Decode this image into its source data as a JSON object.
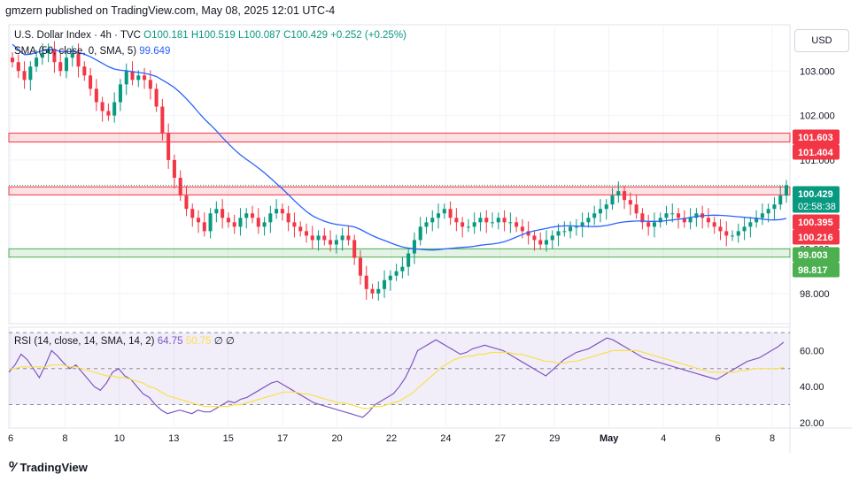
{
  "header": {
    "published": "gmzern published on TradingView.com, May 08, 2025 12:01 UTC-4"
  },
  "legend": {
    "symbol": "U.S. Dollar Index · 4h · TVC",
    "open": "O100.181",
    "high": "H100.519",
    "low": "L100.087",
    "close": "C100.429",
    "change": "+0.252 (+0.25%)",
    "sma_label": "SMA (50, close, 0, SMA, 5)",
    "sma_value": "99.649",
    "rsi_label": "RSI (14, close, 14, SMA, 14, 2)",
    "rsi_value": "64.75",
    "rsi_sma_value": "50.75",
    "rsi_tail": "∅ ∅"
  },
  "currency_button": "USD",
  "footer": {
    "brand": "TradingView"
  },
  "colors": {
    "up": "#089981",
    "down": "#f23645",
    "sma": "#2962ff",
    "rsi": "#7e57c2",
    "rsi_sma": "#f9e04b",
    "resistance_zone": "#f23645",
    "support_zone": "#4caf50"
  },
  "chart_data": [
    {
      "type": "candlestick",
      "title": "U.S. Dollar Index · 4h · TVC",
      "x_tick_labels": [
        "6",
        "8",
        "10",
        "13",
        "15",
        "17",
        "20",
        "22",
        "24",
        "27",
        "29",
        "May",
        "4",
        "6",
        "8"
      ],
      "y_tick_labels": [
        "98.000",
        "99.000",
        "100.000",
        "101.000",
        "102.000",
        "103.000"
      ],
      "ylim": [
        97.4,
        104.0
      ],
      "grid": true,
      "sma": {
        "name": "SMA (50, close, 0, SMA, 5)",
        "last": 99.649
      },
      "zones": [
        {
          "kind": "resistance",
          "from": 101.404,
          "to": 101.603
        },
        {
          "kind": "resistance",
          "from": 100.216,
          "to": 100.395
        },
        {
          "kind": "support",
          "from": 98.817,
          "to": 99.003
        }
      ],
      "price_labels": [
        {
          "value": 101.603,
          "text": "101.603",
          "color": "#f23645"
        },
        {
          "value": 101.404,
          "text": "101.404",
          "color": "#f23645"
        },
        {
          "value": 100.429,
          "text": "100.429",
          "color": "#089981"
        },
        {
          "value": 100.395,
          "text": "100.395",
          "color": "#f23645"
        },
        {
          "value": 100.216,
          "text": "100.216",
          "color": "#f23645"
        },
        {
          "value": 99.003,
          "text": "99.003",
          "color": "#4caf50"
        },
        {
          "value": 98.817,
          "text": "98.817",
          "color": "#4caf50"
        }
      ],
      "countdown": "02:58:38",
      "closes": [
        103.2,
        103.0,
        102.8,
        103.1,
        103.3,
        103.4,
        103.5,
        103.2,
        103.0,
        103.3,
        103.4,
        103.1,
        102.9,
        102.6,
        102.3,
        102.1,
        102.0,
        102.3,
        102.7,
        103.0,
        102.8,
        102.9,
        102.8,
        102.6,
        102.2,
        101.6,
        101.0,
        100.6,
        100.2,
        99.9,
        99.7,
        99.6,
        99.4,
        99.8,
        99.9,
        99.7,
        99.6,
        99.5,
        99.7,
        99.8,
        99.7,
        99.5,
        99.6,
        99.8,
        99.9,
        99.8,
        99.6,
        99.5,
        99.4,
        99.3,
        99.2,
        99.3,
        99.2,
        99.1,
        99.2,
        99.3,
        99.2,
        98.8,
        98.4,
        98.1,
        98.0,
        98.1,
        98.3,
        98.4,
        98.5,
        98.6,
        98.9,
        99.2,
        99.5,
        99.6,
        99.7,
        99.8,
        99.9,
        99.7,
        99.6,
        99.5,
        99.5,
        99.6,
        99.7,
        99.6,
        99.6,
        99.7,
        99.6,
        99.6,
        99.5,
        99.4,
        99.3,
        99.2,
        99.1,
        99.2,
        99.3,
        99.4,
        99.4,
        99.5,
        99.5,
        99.6,
        99.7,
        99.8,
        99.9,
        100.0,
        100.2,
        100.3,
        100.1,
        100.0,
        99.8,
        99.6,
        99.5,
        99.6,
        99.7,
        99.8,
        99.8,
        99.7,
        99.6,
        99.7,
        99.8,
        99.7,
        99.6,
        99.5,
        99.4,
        99.3,
        99.3,
        99.4,
        99.5,
        99.6,
        99.7,
        99.8,
        99.9,
        100.0,
        100.2,
        100.43
      ]
    },
    {
      "type": "line",
      "title": "RSI (14, close, 14, SMA, 14, 2)",
      "y_tick_labels": [
        "20.00",
        "40.00",
        "60.00"
      ],
      "ylim": [
        18,
        72
      ],
      "bands": [
        30,
        50,
        70
      ],
      "series": [
        {
          "name": "RSI",
          "last": 64.75,
          "values": [
            48,
            52,
            58,
            55,
            50,
            45,
            52,
            60,
            57,
            53,
            50,
            52,
            48,
            44,
            40,
            38,
            42,
            48,
            50,
            46,
            44,
            40,
            36,
            34,
            30,
            27,
            25,
            26,
            27,
            26,
            25,
            27,
            26,
            26,
            28,
            30,
            32,
            31,
            33,
            34,
            36,
            38,
            40,
            42,
            43,
            41,
            39,
            37,
            35,
            33,
            31,
            30,
            29,
            28,
            27,
            26,
            25,
            24,
            23,
            26,
            30,
            32,
            34,
            36,
            40,
            45,
            52,
            60,
            62,
            64,
            66,
            64,
            62,
            60,
            58,
            59,
            61,
            62,
            63,
            62,
            61,
            60,
            58,
            56,
            54,
            52,
            50,
            48,
            46,
            49,
            52,
            55,
            57,
            59,
            60,
            61,
            63,
            65,
            67,
            66,
            64,
            62,
            60,
            58,
            56,
            55,
            54,
            53,
            52,
            51,
            50,
            49,
            48,
            47,
            46,
            45,
            44,
            46,
            48,
            50,
            52,
            54,
            55,
            56,
            58,
            60,
            62,
            64.75
          ]
        },
        {
          "name": "RSI SMA",
          "last": 50.75,
          "values": [
            50,
            50,
            51,
            51,
            51,
            51,
            51,
            52,
            52,
            52,
            51,
            51,
            50,
            49,
            48,
            47,
            46,
            46,
            45,
            45,
            44,
            43,
            42,
            40,
            39,
            37,
            35,
            34,
            33,
            32,
            31,
            30,
            29,
            29,
            29,
            29,
            29,
            30,
            30,
            31,
            32,
            33,
            34,
            35,
            36,
            37,
            37,
            37,
            36,
            36,
            35,
            34,
            33,
            32,
            31,
            31,
            30,
            29,
            28,
            28,
            29,
            29,
            30,
            31,
            32,
            34,
            36,
            39,
            42,
            45,
            48,
            51,
            53,
            55,
            56,
            57,
            57,
            58,
            58,
            59,
            59,
            59,
            59,
            58,
            58,
            57,
            56,
            55,
            54,
            54,
            53,
            53,
            54,
            54,
            55,
            56,
            57,
            58,
            59,
            60,
            60,
            60,
            60,
            60,
            59,
            58,
            57,
            56,
            55,
            54,
            53,
            52,
            51,
            50,
            49,
            48,
            48,
            48,
            48,
            48,
            49,
            49,
            50,
            50,
            50,
            50,
            50,
            50.75
          ]
        }
      ]
    }
  ]
}
